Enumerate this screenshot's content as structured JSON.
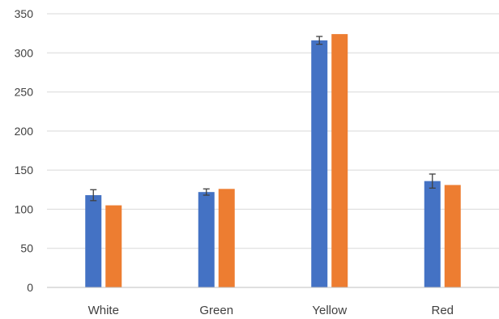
{
  "chart_data": {
    "type": "bar",
    "categories": [
      "White",
      "Green",
      "Yellow",
      "Red"
    ],
    "series": [
      {
        "color": "#4472C4",
        "values": [
          118,
          122,
          316,
          136
        ],
        "error": [
          7,
          4,
          5,
          9
        ]
      },
      {
        "color": "#ED7D31",
        "values": [
          105,
          126,
          324,
          131
        ]
      }
    ],
    "ylim": [
      0,
      350
    ],
    "yticks": [
      0,
      50,
      100,
      150,
      200,
      250,
      300,
      350
    ],
    "grid": true,
    "legend": "none"
  }
}
